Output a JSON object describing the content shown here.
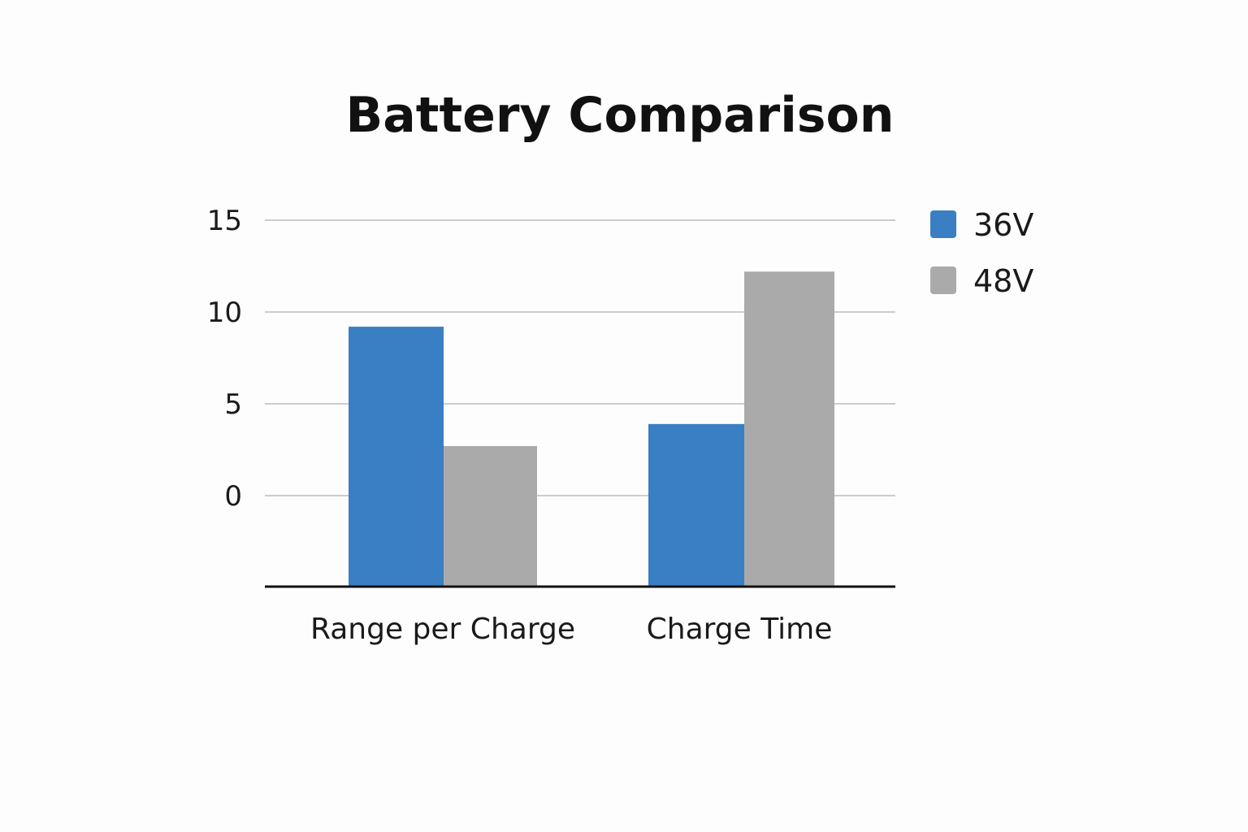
{
  "chart_data": {
    "type": "bar",
    "title": "Battery Comparison",
    "xlabel": "",
    "ylabel": "",
    "categories": [
      "Range per Charge",
      "Charge Time"
    ],
    "series": [
      {
        "name": "36V",
        "values": [
          9.2,
          3.9
        ],
        "color": "#3a7fc3"
      },
      {
        "name": "48V",
        "values": [
          2.7,
          12.2
        ],
        "color": "#aaaaaa"
      }
    ],
    "yticks": [
      0,
      5,
      10,
      15
    ],
    "ylim": [
      0,
      15
    ],
    "grid": true,
    "legend": "right"
  }
}
